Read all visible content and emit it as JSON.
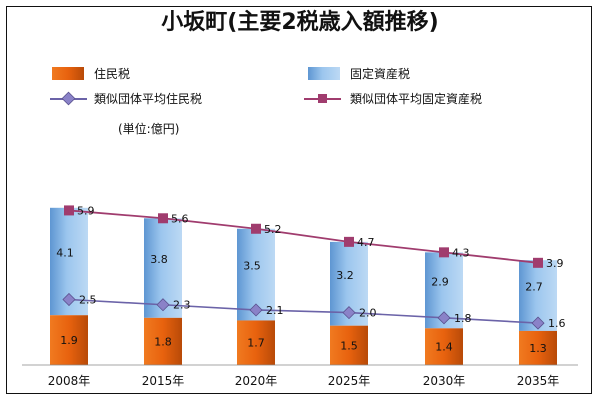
{
  "chart_data": {
    "type": "bar",
    "title": "小坂町(主要2税歳入額推移)",
    "unit_label": "(単位:億円)",
    "categories": [
      "2008年",
      "2015年",
      "2020年",
      "2025年",
      "2030年",
      "2035年"
    ],
    "bar_series": [
      {
        "name": "住民税",
        "values": [
          1.9,
          1.8,
          1.7,
          1.5,
          1.4,
          1.3
        ],
        "color": "#e8620e"
      },
      {
        "name": "固定資産税",
        "values": [
          4.1,
          3.8,
          3.5,
          3.2,
          2.9,
          2.7
        ],
        "color": "#7fb4e6"
      }
    ],
    "line_series": [
      {
        "name": "類似団体平均住民税",
        "values": [
          2.5,
          2.3,
          2.1,
          2.0,
          1.8,
          1.6
        ],
        "color": "#6b63a8",
        "marker": "diamond"
      },
      {
        "name": "類似団体平均固定資産税",
        "values": [
          5.9,
          5.6,
          5.2,
          4.7,
          4.3,
          3.9
        ],
        "color": "#a03c6e",
        "marker": "square"
      }
    ],
    "legend_placement": "top",
    "grid": false
  }
}
